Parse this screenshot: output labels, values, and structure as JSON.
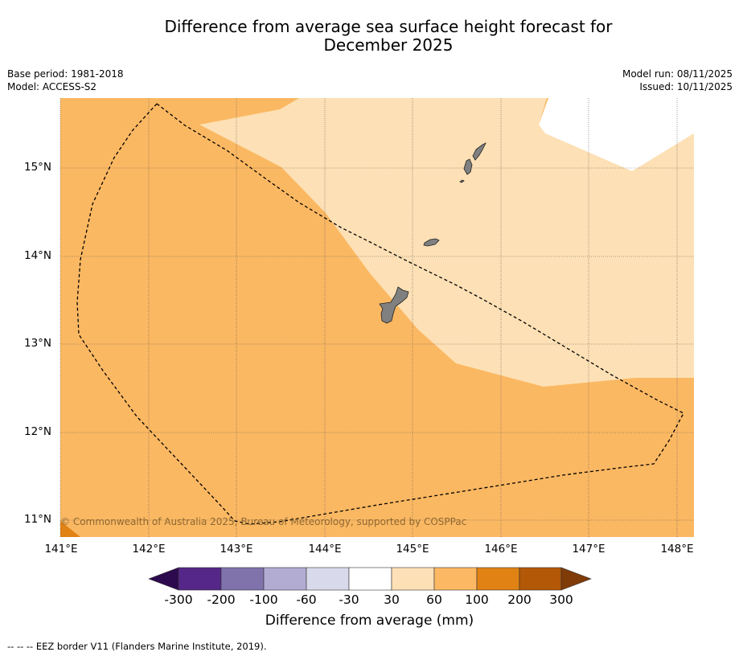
{
  "title_line1": "Difference from average sea surface height forecast for",
  "title_line2": "December 2025",
  "meta": {
    "base_period": "Base period: 1981-2018",
    "model": "Model: ACCESS-S2",
    "model_run": "Model run: 08/11/2025",
    "issued": "Issued: 10/11/2025"
  },
  "map": {
    "lat_labels": [
      "15°N",
      "14°N",
      "13°N",
      "12°N",
      "11°N"
    ],
    "lon_labels": [
      "141°E",
      "142°E",
      "143°E",
      "144°E",
      "145°E",
      "146°E",
      "147°E",
      "148°E"
    ],
    "copyright": "© Commonwealth of Australia 2025, Bureau of Meteorology, supported by COSPPac",
    "features": [
      "Guam",
      "Rota",
      "Tinian",
      "Saipan",
      "EEZ border"
    ]
  },
  "colorbar": {
    "ticks": [
      "-300",
      "-200",
      "-100",
      "-60",
      "-30",
      "30",
      "60",
      "100",
      "200",
      "300"
    ],
    "colors": [
      "#2d0a4e",
      "#542788",
      "#8073ac",
      "#b2abd2",
      "#d8daeb",
      "#ffffff",
      "#fee0b6",
      "#fdb863",
      "#e08214",
      "#b35806",
      "#7f3b08"
    ],
    "label": "Difference from average (mm)"
  },
  "footer": "--  --  -- EEZ border V11 (Flanders Marine Institute, 2019)."
}
